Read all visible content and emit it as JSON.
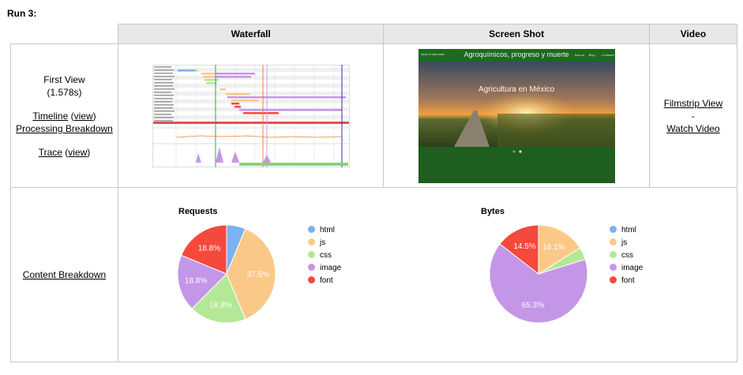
{
  "run_title": "Run 3:",
  "headers": {
    "waterfall": "Waterfall",
    "screenshot": "Screen Shot",
    "video": "Video"
  },
  "first_view": {
    "label": "First View",
    "time": "(1.578s)",
    "timeline_label": "Timeline",
    "timeline_view": "view",
    "processing_label": "Processing Breakdown",
    "trace_label": "Trace",
    "trace_view": "view"
  },
  "video": {
    "filmstrip": "Filmstrip View",
    "separator": "-",
    "watch": "Watch Video"
  },
  "screenshot": {
    "site_title": "Agroquímicos, progreso y muerte",
    "caption": "Agricultura en México",
    "brand": "Inicio el sitio web",
    "menu": [
      "Acerca",
      "Blog",
      "Contacto"
    ]
  },
  "content_breakdown_label": "Content Breakdown",
  "colors": {
    "html": "#7cb1f2",
    "js": "#fbc987",
    "css": "#b5e896",
    "image": "#c496e8",
    "font": "#f5493c"
  },
  "chart_data": [
    {
      "type": "pie",
      "title": "Requests",
      "legend": [
        "html",
        "js",
        "css",
        "image",
        "font"
      ],
      "labels": [
        "html",
        "js",
        "css",
        "image",
        "font"
      ],
      "values": [
        6.3,
        37.5,
        18.8,
        18.8,
        18.8
      ],
      "data_labels": [
        "",
        "37.5%",
        "18.8%",
        "18.8%",
        "18.8%"
      ],
      "legend_position": "right"
    },
    {
      "type": "pie",
      "title": "Bytes",
      "legend": [
        "html",
        "js",
        "css",
        "image",
        "font"
      ],
      "labels": [
        "html",
        "js",
        "css",
        "image",
        "font"
      ],
      "values": [
        0.0,
        16.1,
        4.1,
        65.3,
        14.5
      ],
      "data_labels": [
        "",
        "16.1%",
        "",
        "65.3%",
        "14.5%"
      ],
      "legend_position": "right"
    }
  ]
}
